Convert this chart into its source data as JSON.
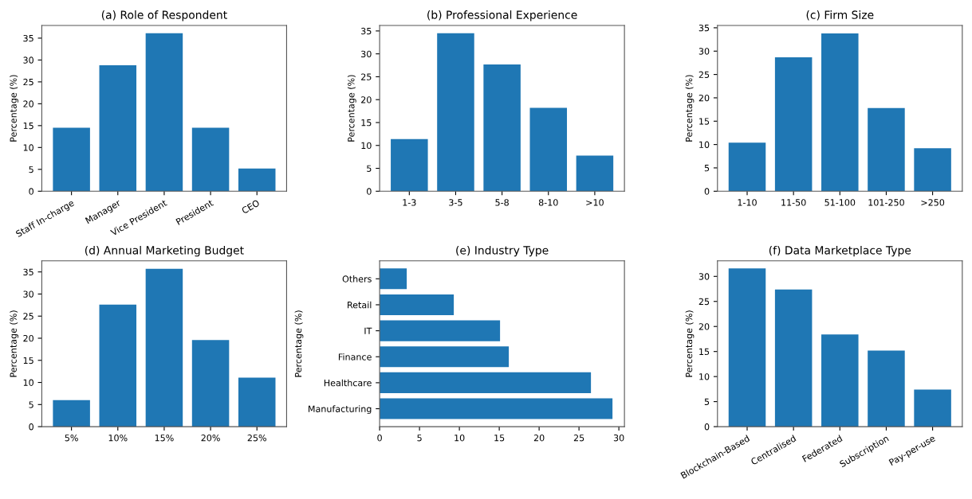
{
  "chart_data": [
    {
      "type": "bar",
      "title": "(a) Role of Respondent",
      "ylabel": "Percentage (%)",
      "categories": [
        "Staff In-charge",
        "Manager",
        "Vice President",
        "President",
        "CEO"
      ],
      "values": [
        14.5,
        28.8,
        36.1,
        14.5,
        5.2
      ],
      "color": "#1f77b4",
      "ylim": [
        0,
        37.9
      ],
      "yticks": [
        0,
        5,
        10,
        15,
        20,
        25,
        30,
        35
      ],
      "grid": false,
      "legend": false
    },
    {
      "type": "bar",
      "title": "(b) Professional Experience",
      "ylabel": "Percentage (%)",
      "categories": [
        "1-3",
        "3-5",
        "5-8",
        "8-10",
        ">10"
      ],
      "values": [
        11.4,
        34.5,
        27.7,
        18.2,
        7.8
      ],
      "color": "#1f77b4",
      "ylim": [
        0,
        36.2
      ],
      "yticks": [
        0,
        5,
        10,
        15,
        20,
        25,
        30,
        35
      ],
      "grid": false,
      "legend": false
    },
    {
      "type": "bar",
      "title": "(c) Firm Size",
      "ylabel": "Percentage (%)",
      "categories": [
        "1-10",
        "11-50",
        "51-100",
        "101-250",
        ">250"
      ],
      "values": [
        10.4,
        28.7,
        33.8,
        17.8,
        9.2
      ],
      "color": "#1f77b4",
      "ylim": [
        0,
        35.5
      ],
      "yticks": [
        0,
        5,
        10,
        15,
        20,
        25,
        30,
        35
      ],
      "grid": false,
      "legend": false
    },
    {
      "type": "bar",
      "title": "(d) Annual Marketing Budget",
      "ylabel": "Percentage (%)",
      "categories": [
        "5%",
        "10%",
        "15%",
        "20%",
        "25%"
      ],
      "values": [
        6.0,
        27.6,
        35.7,
        19.6,
        11.1
      ],
      "color": "#1f77b4",
      "ylim": [
        0,
        37.5
      ],
      "yticks": [
        0,
        5,
        10,
        15,
        20,
        25,
        30,
        35
      ],
      "grid": false,
      "legend": false
    },
    {
      "type": "bar",
      "orientation": "horizontal",
      "title": "(e) Industry Type",
      "ylabel": "Percentage (%)",
      "categories": [
        "Others",
        "Retail",
        "IT",
        "Finance",
        "Healthcare",
        "Manufacturing"
      ],
      "values": [
        3.4,
        9.3,
        15.1,
        16.2,
        26.5,
        29.2
      ],
      "color": "#1f77b4",
      "xlim": [
        0,
        30.7
      ],
      "xticks": [
        0,
        5,
        10,
        15,
        20,
        25,
        30
      ],
      "grid": false,
      "legend": false
    },
    {
      "type": "bar",
      "title": "(f) Data Marketplace Type",
      "ylabel": "Percentage (%)",
      "categories": [
        "Blockchain-Based",
        "Centralised",
        "Federated",
        "Subscription",
        "Pay-per-use"
      ],
      "values": [
        31.6,
        27.4,
        18.4,
        15.2,
        7.4
      ],
      "color": "#1f77b4",
      "ylim": [
        0,
        33.1
      ],
      "yticks": [
        0,
        5,
        10,
        15,
        20,
        25,
        30
      ],
      "grid": false,
      "legend": false
    }
  ]
}
